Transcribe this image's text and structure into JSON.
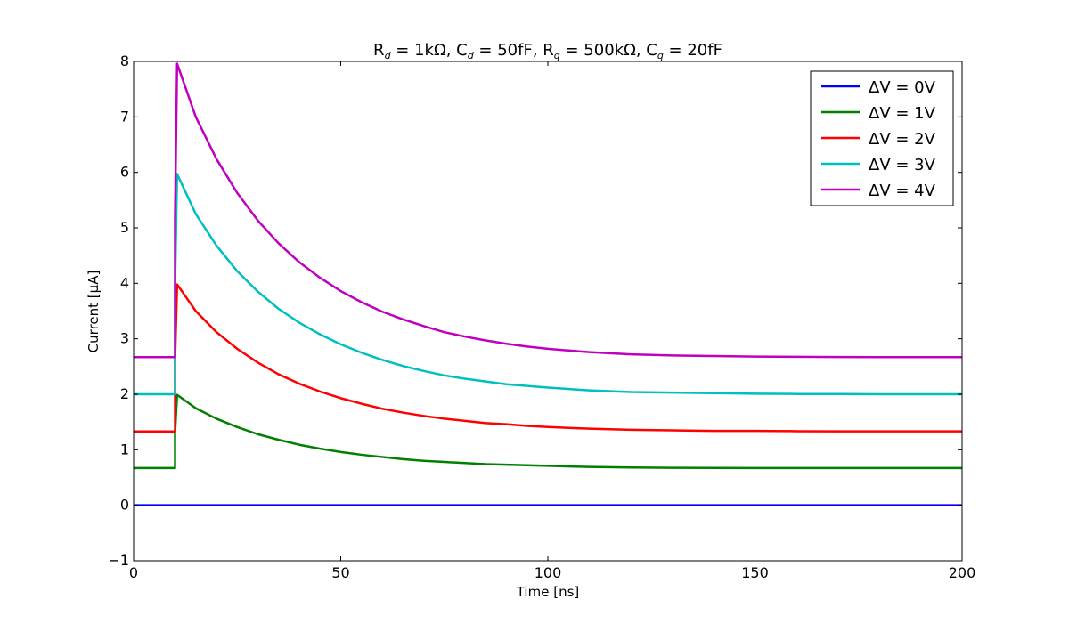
{
  "chart_data": {
    "type": "line",
    "title": "R_d = 1kΩ, C_d = 50fF, R_q = 500kΩ, C_q = 20fF",
    "title_parts": {
      "r_d_prefix": "R",
      "r_d_sub": "d",
      "r_d_value": " = 1kΩ, C",
      "c_d_sub": "d",
      "c_d_value": " = 50fF, R",
      "r_q_sub": "q",
      "r_q_value": " = 500kΩ, C",
      "c_q_sub": "q",
      "c_q_value": " = 20fF"
    },
    "xlabel": "Time [ns]",
    "ylabel": "Current [μA]",
    "xlim": [
      0,
      200
    ],
    "ylim": [
      -1,
      8
    ],
    "xticks": [
      0,
      50,
      100,
      150,
      200
    ],
    "yticks": [
      -1,
      0,
      1,
      2,
      3,
      4,
      5,
      6,
      7,
      8
    ],
    "grid": false,
    "legend_position": "top-right",
    "pulse_time_ns": 10,
    "x": [
      0,
      10,
      10,
      10.5,
      15,
      20,
      25,
      30,
      35,
      40,
      45,
      50,
      55,
      60,
      65,
      70,
      75,
      80,
      85,
      90,
      95,
      100,
      110,
      120,
      130,
      140,
      150,
      160,
      170,
      180,
      190,
      200
    ],
    "series": [
      {
        "name": "ΔV = 0V",
        "color": "#0000ff",
        "values": [
          0,
          0,
          0,
          0,
          0,
          0,
          0,
          0,
          0,
          0,
          0,
          0,
          0,
          0,
          0,
          0,
          0,
          0,
          0,
          0,
          0,
          0,
          0,
          0,
          0,
          0,
          0,
          0,
          0,
          0,
          0,
          0
        ]
      },
      {
        "name": "ΔV = 1V",
        "color": "#008000",
        "values": [
          0.67,
          0.67,
          1.3,
          1.99,
          1.75,
          1.56,
          1.41,
          1.28,
          1.18,
          1.09,
          1.02,
          0.96,
          0.91,
          0.87,
          0.83,
          0.8,
          0.78,
          0.76,
          0.74,
          0.73,
          0.72,
          0.71,
          0.69,
          0.68,
          0.675,
          0.672,
          0.67,
          0.67,
          0.67,
          0.67,
          0.67,
          0.67
        ]
      },
      {
        "name": "ΔV = 2V",
        "color": "#ff0000",
        "values": [
          1.33,
          1.33,
          2.6,
          3.98,
          3.5,
          3.12,
          2.82,
          2.57,
          2.36,
          2.19,
          2.05,
          1.93,
          1.83,
          1.74,
          1.67,
          1.61,
          1.56,
          1.52,
          1.48,
          1.46,
          1.43,
          1.41,
          1.38,
          1.36,
          1.35,
          1.34,
          1.34,
          1.335,
          1.333,
          1.333,
          1.333,
          1.333
        ]
      },
      {
        "name": "ΔV = 3V",
        "color": "#00bfbf",
        "values": [
          2.0,
          2.0,
          3.9,
          5.97,
          5.25,
          4.68,
          4.22,
          3.85,
          3.54,
          3.29,
          3.08,
          2.9,
          2.75,
          2.62,
          2.51,
          2.42,
          2.34,
          2.28,
          2.23,
          2.18,
          2.15,
          2.12,
          2.07,
          2.04,
          2.03,
          2.02,
          2.01,
          2.005,
          2.003,
          2.0,
          2.0,
          2.0
        ]
      },
      {
        "name": "ΔV = 4V",
        "color": "#bf00bf",
        "values": [
          2.67,
          2.67,
          5.2,
          7.96,
          7.0,
          6.24,
          5.63,
          5.13,
          4.72,
          4.38,
          4.1,
          3.86,
          3.66,
          3.49,
          3.35,
          3.23,
          3.12,
          3.04,
          2.97,
          2.91,
          2.86,
          2.82,
          2.76,
          2.72,
          2.7,
          2.69,
          2.68,
          2.675,
          2.672,
          2.67,
          2.67,
          2.67
        ]
      }
    ]
  }
}
